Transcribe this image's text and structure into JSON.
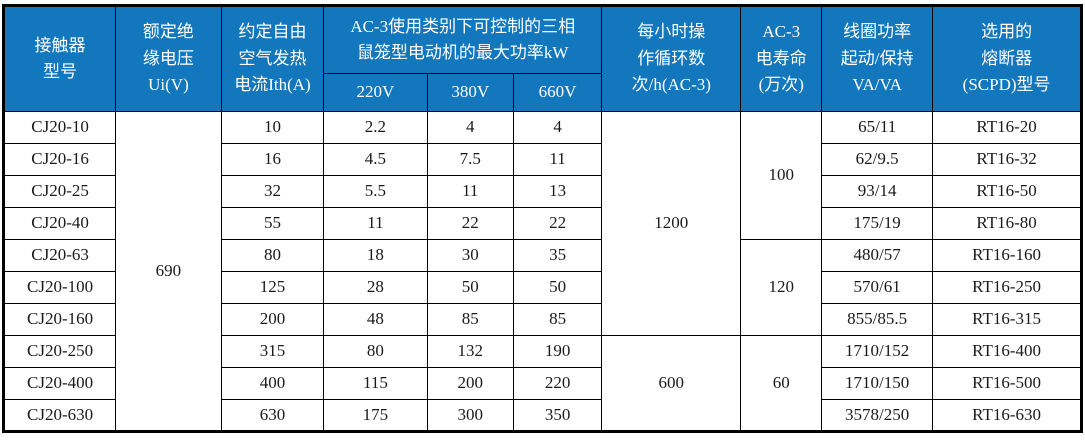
{
  "table": {
    "title_semantic": "CJ20 contactor specification table",
    "colors": {
      "header_bg": "#1377BD",
      "header_text": "#FFFFFF",
      "grid": "#000000",
      "body_text": "#1A1A1A",
      "page_bg": "#FFFFFF"
    },
    "header": {
      "model": "接触器\n型号",
      "ui": "额定绝\n缘电压\nUi(V)",
      "ith": "约定自由\n空气发热\n电流Ith(A)",
      "power_group": "AC-3使用类别下可控制的三相\n鼠笼型电动机的最大功率kW",
      "v220": "220V",
      "v380": "380V",
      "v660": "660V",
      "cycles": "每小时操\n作循环数\n次/h(AC-3)",
      "life": "AC-3\n电寿命\n(万次)",
      "coil": "线圈功率\n起动/保持\nVA/VA",
      "fuse": "选用的\n熔断器\n(SCPD)型号"
    },
    "column_order": [
      "model",
      "ui",
      "ith",
      "v220",
      "v380",
      "v660",
      "cycles",
      "life",
      "coil",
      "fuse"
    ],
    "rows": [
      {
        "model": "CJ20-10",
        "ith": "10",
        "v220": "2.2",
        "v380": "4",
        "v660": "4",
        "coil": "65/11",
        "fuse": "RT16-20"
      },
      {
        "model": "CJ20-16",
        "ith": "16",
        "v220": "4.5",
        "v380": "7.5",
        "v660": "11",
        "coil": "62/9.5",
        "fuse": "RT16-32"
      },
      {
        "model": "CJ20-25",
        "ith": "32",
        "v220": "5.5",
        "v380": "11",
        "v660": "13",
        "coil": "93/14",
        "fuse": "RT16-50"
      },
      {
        "model": "CJ20-40",
        "ith": "55",
        "v220": "11",
        "v380": "22",
        "v660": "22",
        "coil": "175/19",
        "fuse": "RT16-80"
      },
      {
        "model": "CJ20-63",
        "ith": "80",
        "v220": "18",
        "v380": "30",
        "v660": "35",
        "coil": "480/57",
        "fuse": "RT16-160"
      },
      {
        "model": "CJ20-100",
        "ith": "125",
        "v220": "28",
        "v380": "50",
        "v660": "50",
        "coil": "570/61",
        "fuse": "RT16-250"
      },
      {
        "model": "CJ20-160",
        "ith": "200",
        "v220": "48",
        "v380": "85",
        "v660": "85",
        "coil": "855/85.5",
        "fuse": "RT16-315"
      },
      {
        "model": "CJ20-250",
        "ith": "315",
        "v220": "80",
        "v380": "132",
        "v660": "190",
        "coil": "1710/152",
        "fuse": "RT16-400"
      },
      {
        "model": "CJ20-400",
        "ith": "400",
        "v220": "115",
        "v380": "200",
        "v660": "220",
        "coil": "1710/150",
        "fuse": "RT16-500"
      },
      {
        "model": "CJ20-630",
        "ith": "630",
        "v220": "175",
        "v380": "300",
        "v660": "350",
        "coil": "3578/250",
        "fuse": "RT16-630"
      }
    ],
    "merged": {
      "ui": [
        {
          "row": 0,
          "span": 10,
          "value": "690"
        }
      ],
      "cycles": [
        {
          "row": 0,
          "span": 7,
          "value": "1200"
        },
        {
          "row": 7,
          "span": 3,
          "value": "600"
        }
      ],
      "life": [
        {
          "row": 0,
          "span": 4,
          "value": "100"
        },
        {
          "row": 4,
          "span": 3,
          "value": "120"
        },
        {
          "row": 7,
          "span": 3,
          "value": "60"
        }
      ]
    }
  }
}
